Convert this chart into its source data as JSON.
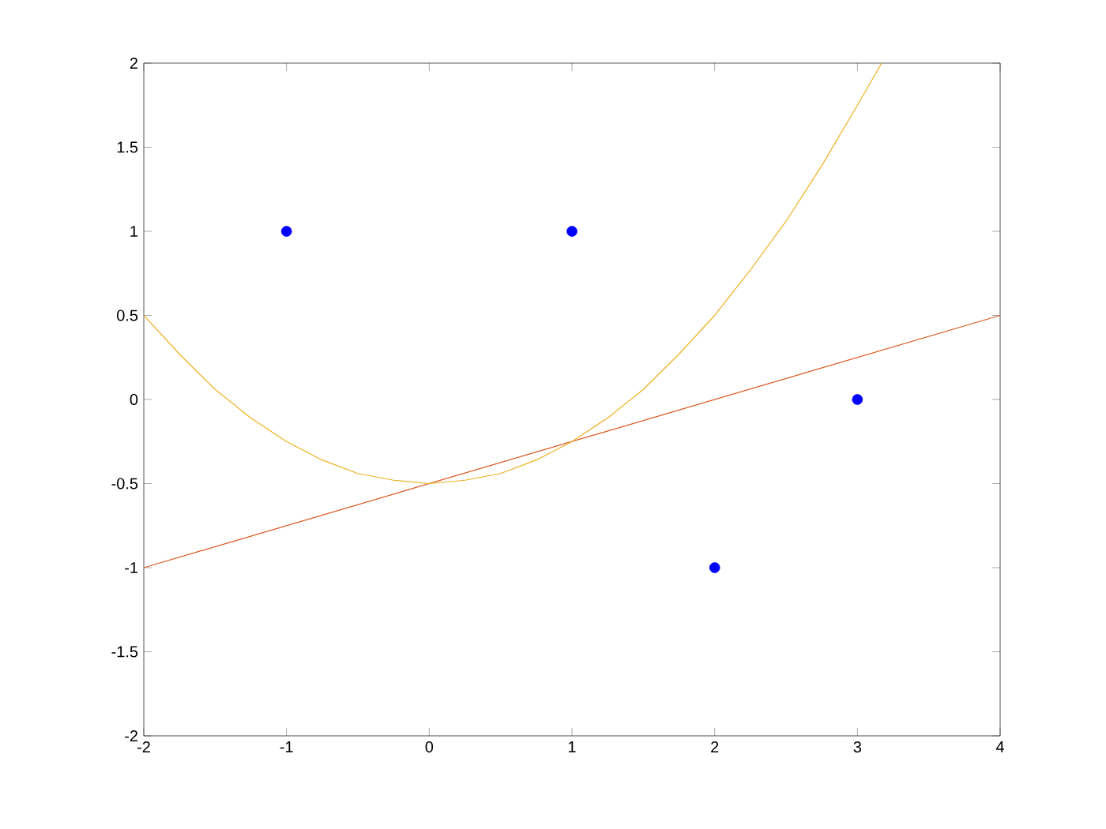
{
  "chart_data": {
    "type": "scatter",
    "xlim": [
      -2,
      4
    ],
    "ylim": [
      -2,
      2
    ],
    "xticks": [
      -2,
      -1,
      0,
      1,
      2,
      3,
      4
    ],
    "yticks": [
      -2,
      -1.5,
      -1,
      -0.5,
      0,
      0.5,
      1,
      1.5,
      2
    ],
    "grid": false,
    "series": [
      {
        "color": "#0000ff",
        "marker": "circle",
        "x": [
          -1,
          1,
          2,
          3
        ],
        "values": [
          1,
          1,
          -1,
          0
        ]
      },
      {
        "type": "line",
        "color": "#d95319",
        "marker": "none",
        "line_style": "solid",
        "x": [
          -2,
          4
        ],
        "values": [
          -1,
          0.5
        ]
      },
      {
        "type": "line",
        "color": "#edb120",
        "marker": "none",
        "line_style": "solid",
        "x": [
          -2,
          -1.75,
          -1.5,
          -1.25,
          -1,
          -0.75,
          -0.5,
          -0.25,
          0,
          0.25,
          0.5,
          0.75,
          1,
          1.25,
          1.5,
          1.75,
          2,
          2.25,
          2.5,
          2.75,
          3,
          3.17
        ],
        "values": [
          0.5,
          0.27,
          0.06,
          -0.11,
          -0.25,
          -0.36,
          -0.44,
          -0.48,
          -0.5,
          -0.48,
          -0.44,
          -0.36,
          -0.25,
          -0.11,
          0.06,
          0.27,
          0.5,
          0.77,
          1.06,
          1.39,
          1.75,
          2.0
        ]
      }
    ]
  }
}
